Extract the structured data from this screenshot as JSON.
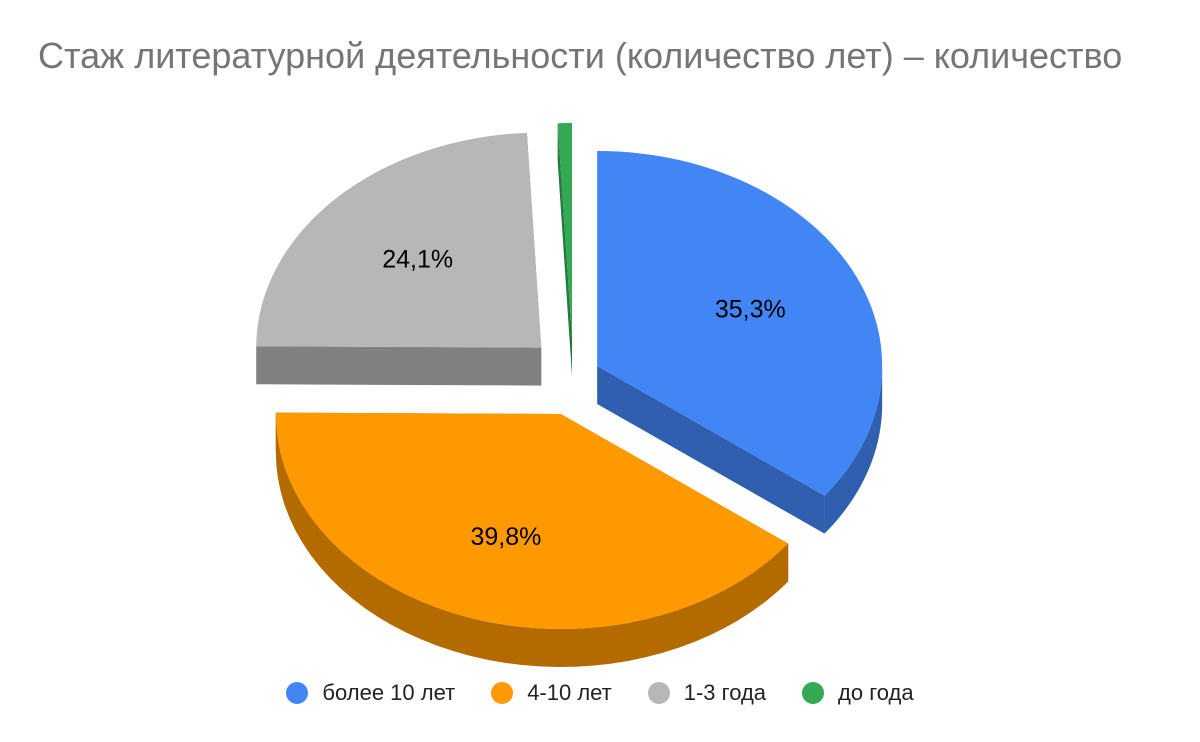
{
  "chart_data": {
    "type": "pie",
    "title": "Стаж литературной деятельности (количество лет) – количество",
    "labels": [
      "более 10 лет",
      "4-10 лет",
      "1-3 года",
      "до года"
    ],
    "values": [
      35.3,
      39.8,
      24.1,
      0.8
    ],
    "value_labels": [
      "35,3%",
      "39,8%",
      "24,1%",
      ""
    ],
    "colors": [
      "#4285f4",
      "#ff9900",
      "#b7b7b7",
      "#34a853"
    ],
    "side_colors": [
      "#2f5fae",
      "#b36b00",
      "#808080",
      "#237a3b"
    ],
    "style": "3d-exploded",
    "legend_position": "bottom"
  }
}
